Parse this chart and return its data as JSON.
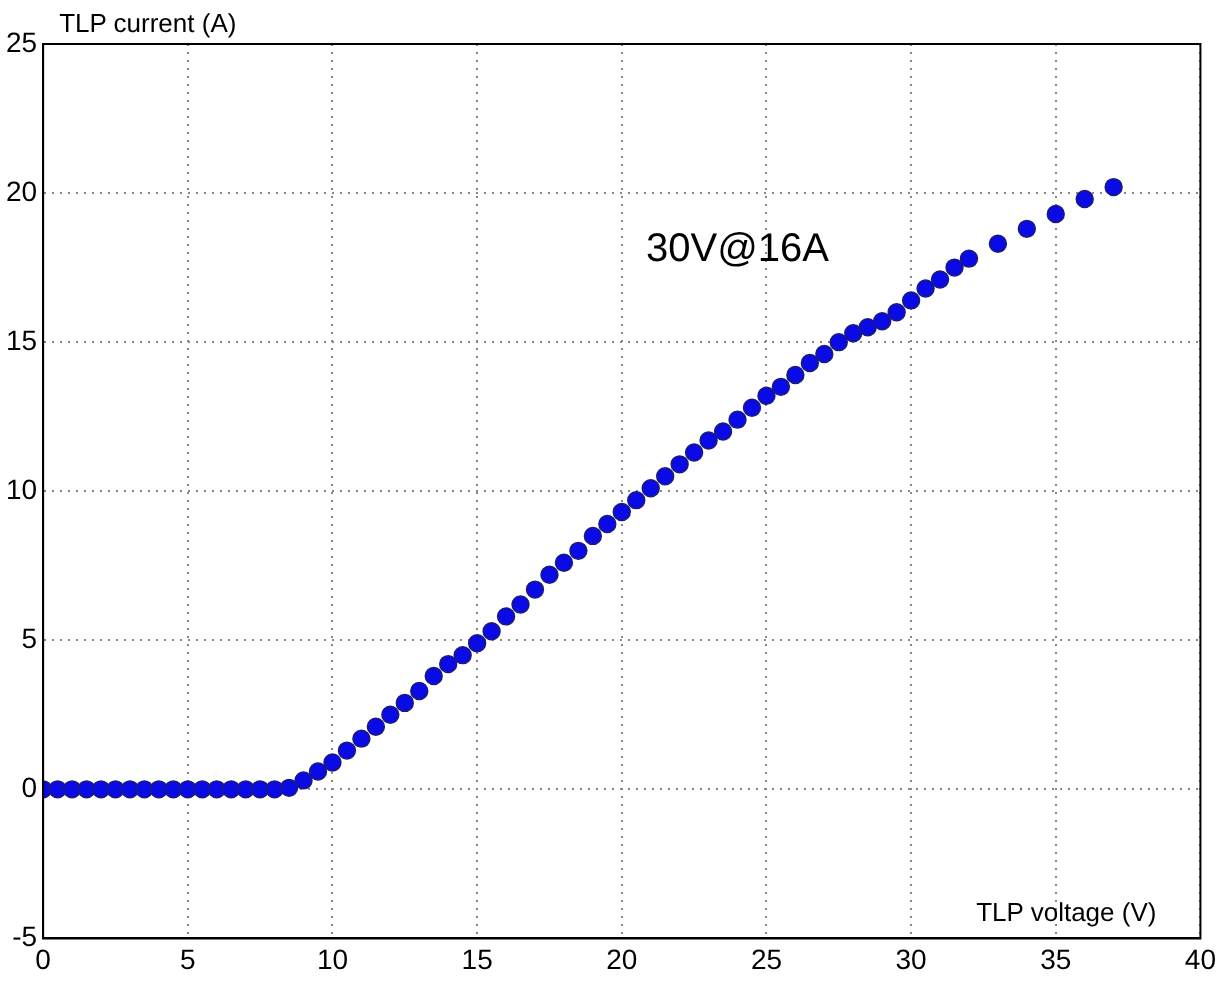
{
  "chart_data": {
    "type": "scatter",
    "xlabel": "TLP voltage (V)",
    "ylabel": "TLP current (A)",
    "x": [
      0,
      0.5,
      1,
      1.5,
      2,
      2.5,
      3,
      3.5,
      4,
      4.5,
      5,
      5.5,
      6,
      6.5,
      7,
      7.5,
      8,
      8.5,
      9,
      9.5,
      10,
      10.5,
      11,
      11.5,
      12,
      12.5,
      13,
      13.5,
      14,
      14.5,
      15,
      15.5,
      16,
      16.5,
      17,
      17.5,
      18,
      18.5,
      19,
      19.5,
      20,
      20.5,
      21,
      21.5,
      22,
      22.5,
      23,
      23.5,
      24,
      24.5,
      25,
      25.5,
      26,
      26.5,
      27,
      27.5,
      28,
      28.5,
      29,
      29.5,
      30,
      30.5,
      31,
      31.5,
      32,
      33,
      34,
      35,
      36,
      37
    ],
    "series": [
      {
        "color": "#0a0ae6",
        "values": [
          0,
          0,
          0,
          0,
          0,
          0,
          0,
          0,
          0,
          0,
          0,
          0,
          0,
          0,
          0,
          0,
          0,
          0.05,
          0.3,
          0.6,
          0.9,
          1.3,
          1.7,
          2.1,
          2.5,
          2.9,
          3.3,
          3.8,
          4.2,
          4.5,
          4.9,
          5.3,
          5.8,
          6.2,
          6.7,
          7.2,
          7.6,
          8,
          8.5,
          8.9,
          9.3,
          9.7,
          10.1,
          10.5,
          10.9,
          11.3,
          11.7,
          12,
          12.4,
          12.8,
          13.2,
          13.5,
          13.9,
          14.3,
          14.6,
          15,
          15.3,
          15.5,
          15.7,
          16,
          16.4,
          16.8,
          17.1,
          17.5,
          17.8,
          18.3,
          18.8,
          19.3,
          19.8,
          20.2
        ]
      }
    ],
    "xlim": [
      0,
      40
    ],
    "xticks": [
      0,
      5,
      10,
      15,
      20,
      25,
      30,
      35,
      40
    ],
    "ylim": [
      -5,
      25
    ],
    "yticks": [
      -5,
      0,
      5,
      10,
      15,
      20,
      25
    ],
    "grid": true,
    "marker": "circle",
    "line_style": "none",
    "legend": false,
    "annotations": [
      "30V@16A"
    ]
  }
}
